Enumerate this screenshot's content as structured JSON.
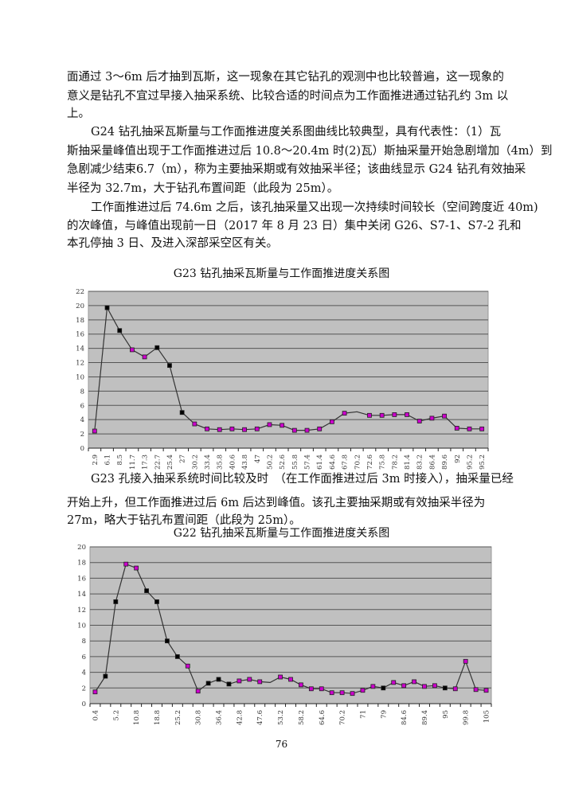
{
  "paragraphs_top": [
    "面通过 3～6m 后才抽到瓦斯，这一现象在其它钻孔的观测中也比较普遍，这一现象的",
    "意义是钻孔不宜过早接入抽采系统、比较合适的时间点为工作面推进通过钻孔约 3m 以",
    "上。",
    "G24 钻孔抽采瓦斯量与工作面推进度关系图曲线比较典型，具有代表性：（1）瓦",
    "斯抽采量峰值出现于工作面推进过后 10.8～20.4m 时(2)瓦）斯抽采量开始急剧增加（4m）到",
    "急剧减少结束6.7（m），称为主要抽采期或有效抽采半径；该曲线显示 G24 钻孔有效抽采",
    "半径为 32.7m，大于钻孔布置间距（此段为 25m）。",
    "工作面推进过后 74.6m 之后，该孔抽采量又出现一次持续时间较长（空间跨度近 40m)",
    "的次峰值，与峰值出现前一日（2017 年 8 月 23 日）集中关闭 G26、S7-1、S7-2 孔和",
    "本孔停抽 3 日、及进入深部采空区有关。"
  ],
  "paragraphs_mid": [
    "G23 孔接入抽采系统时间比较及时　（在工作面推进过后 3m 时接入），抽采量已经",
    "开始上升，但工作面推进过后 6m 后达到峰值。该孔主要抽采期或有效抽采半径为",
    "27m，略大于钻孔布置间距（此段为 25m）。"
  ],
  "page_number": "76",
  "colors": {
    "plot_bg": "#c0c0c0",
    "grid": "#555555",
    "line": "#333333",
    "marker_purple": "#cc00cc",
    "marker_black": "#000000"
  },
  "chart_data": [
    {
      "type": "line",
      "title": "G23 钻孔抽采瓦斯量与工作面推进度关系图",
      "categories": [
        "2.9",
        "6.1",
        "8.5",
        "11.7",
        "17.3",
        "22.7",
        "25.4",
        "27",
        "30.2",
        "33.4",
        "35.8",
        "40.6",
        "43.8",
        "47",
        "50.2",
        "52.6",
        "55.8",
        "57.4",
        "61.4",
        "64.6",
        "67.8",
        "70.2",
        "72.6",
        "75.8",
        "78.2",
        "81.4",
        "83.2",
        "86.4",
        "89.6",
        "92",
        "95.2",
        "95.2"
      ],
      "values": [
        2.4,
        19.7,
        16.5,
        13.8,
        12.8,
        14.1,
        11.6,
        5.0,
        3.4,
        2.7,
        2.6,
        2.7,
        2.6,
        2.7,
        3.3,
        3.2,
        2.5,
        2.5,
        2.7,
        3.7,
        4.9,
        5.1,
        4.6,
        4.6,
        4.7,
        4.7,
        3.8,
        4.2,
        4.5,
        2.8,
        2.7,
        2.7
      ],
      "marker_colors": [
        "purple",
        "black",
        "black",
        "purple",
        "purple",
        "black",
        "black",
        "black",
        "purple",
        "purple",
        "purple",
        "purple",
        "purple",
        "purple",
        "purple",
        "purple",
        "purple",
        "purple",
        "purple",
        "purple",
        "purple",
        "none",
        "purple",
        "purple",
        "purple",
        "purple",
        "purple",
        "purple",
        "purple",
        "purple",
        "purple",
        "purple"
      ],
      "ylim": [
        0,
        22
      ],
      "yticks": [
        0,
        2,
        4,
        6,
        8,
        10,
        12,
        14,
        16,
        18,
        20,
        22
      ],
      "grid": true,
      "legend": "none"
    },
    {
      "type": "line",
      "title": "G22 钻孔抽采瓦斯量与工作面推进度关系图",
      "categories": [
        "0.4",
        "",
        "5.2",
        "",
        "10.8",
        "",
        "18.8",
        "",
        "25.2",
        "",
        "30.8",
        "",
        "36.4",
        "",
        "42.8",
        "",
        "47.6",
        "",
        "53.2",
        "",
        "58.2",
        "",
        "64.6",
        "",
        "70.2",
        "",
        "71",
        "",
        "79",
        "",
        "84.6",
        "",
        "89.4",
        "",
        "95",
        "",
        "99.8",
        "",
        "105"
      ],
      "values": [
        1.5,
        3.5,
        13.0,
        17.8,
        17.3,
        14.4,
        13.0,
        8.0,
        6.0,
        4.8,
        1.6,
        2.6,
        3.1,
        2.5,
        2.9,
        3.1,
        2.8,
        2.7,
        3.4,
        3.1,
        2.4,
        1.9,
        1.9,
        1.4,
        1.4,
        1.3,
        1.7,
        2.2,
        2.0,
        2.7,
        2.3,
        2.8,
        2.2,
        2.3,
        2.0,
        1.9,
        5.4,
        1.8,
        1.7
      ],
      "marker_colors": [
        "purple",
        "black",
        "black",
        "purple",
        "purple",
        "black",
        "black",
        "black",
        "black",
        "purple",
        "purple",
        "black",
        "black",
        "black",
        "purple",
        "purple",
        "purple",
        "none",
        "purple",
        "purple",
        "purple",
        "purple",
        "purple",
        "purple",
        "purple",
        "purple",
        "purple",
        "purple",
        "black",
        "purple",
        "purple",
        "purple",
        "purple",
        "purple",
        "black",
        "purple",
        "purple",
        "purple",
        "purple"
      ],
      "ylim": [
        0,
        20
      ],
      "yticks": [
        0,
        2,
        4,
        6,
        8,
        10,
        12,
        14,
        16,
        18,
        20
      ],
      "grid": true,
      "legend": "none"
    }
  ]
}
